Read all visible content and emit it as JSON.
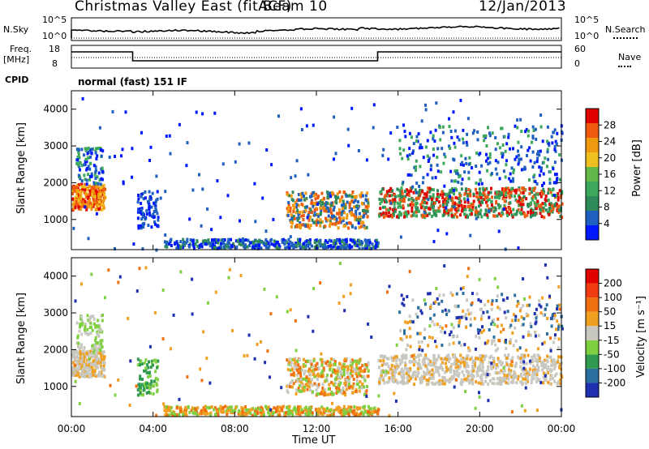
{
  "header": {
    "site": "Christmas Valley East (fitACF)",
    "beam": "Beam 10",
    "date": "12/Jan/2013",
    "cpid_label": "CPID",
    "cpid_value": "normal (fast) 151 IF"
  },
  "top_panels": {
    "nsky_label": "N.Sky",
    "nsearch_label": "N.Search",
    "noise_ticks": [
      "10^5",
      "10^0"
    ],
    "freq_label_1": "Freq.",
    "freq_label_2": "[MHz]",
    "freq_ticks": [
      "18",
      "8"
    ],
    "nave_label": "Nave",
    "nave_ticks": [
      "60",
      "0"
    ]
  },
  "chart_data": [
    {
      "type": "heatmap",
      "panel": "power",
      "ylabel": "Slant Range [km]",
      "xlabel": "",
      "xlim": [
        0,
        24
      ],
      "ylim": [
        180,
        4500
      ],
      "xticks": [
        "00:00",
        "04:00",
        "08:00",
        "12:00",
        "16:00",
        "20:00",
        "00:00"
      ],
      "yticks": [
        "1000",
        "2000",
        "3000",
        "4000"
      ],
      "colorbar": {
        "label": "Power [dB]",
        "ticks": [
          "28",
          "24",
          "20",
          "16",
          "12",
          "8",
          "4"
        ],
        "colors": [
          "#0018ff",
          "#1e5fbf",
          "#2f8a5a",
          "#3ca85a",
          "#63b84a",
          "#f0c020",
          "#f09a10",
          "#f05a10",
          "#e00000"
        ]
      }
    },
    {
      "type": "heatmap",
      "panel": "velocity",
      "ylabel": "Slant Range [km]",
      "xlabel": "Time UT",
      "xlim": [
        0,
        24
      ],
      "ylim": [
        180,
        4500
      ],
      "xticks": [
        "00:00",
        "04:00",
        "08:00",
        "12:00",
        "16:00",
        "20:00",
        "00:00"
      ],
      "yticks": [
        "1000",
        "2000",
        "3000",
        "4000"
      ],
      "colorbar": {
        "label": "Velocity [m s⁻¹]",
        "ticks": [
          "200",
          "100",
          "50",
          "15",
          "-15",
          "-50",
          "-100",
          "-200"
        ],
        "colors": [
          "#1e2fb0",
          "#2a6fa0",
          "#2f9a50",
          "#7fd040",
          "#c8c8c0",
          "#f0a020",
          "#f07010",
          "#f03a10",
          "#e00000"
        ]
      }
    }
  ]
}
